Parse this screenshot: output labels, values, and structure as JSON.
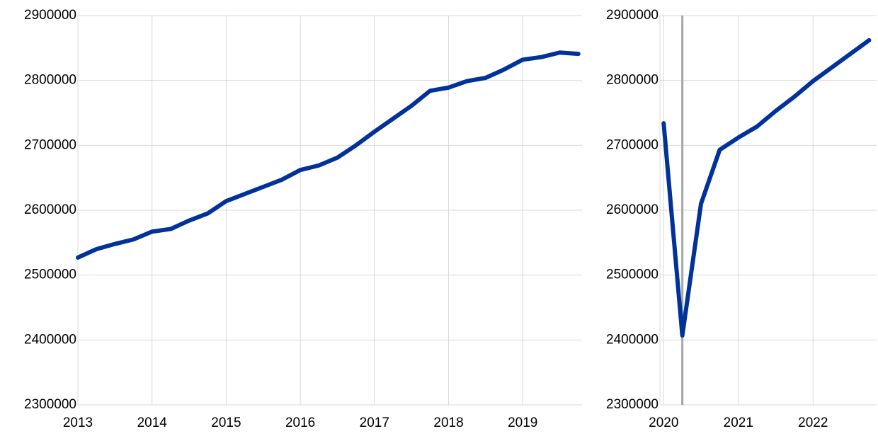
{
  "chart_data": [
    {
      "type": "line",
      "x": [
        2013,
        2013.25,
        2013.5,
        2013.75,
        2014,
        2014.25,
        2014.5,
        2014.75,
        2015,
        2015.25,
        2015.5,
        2015.75,
        2016,
        2016.25,
        2016.5,
        2016.75,
        2017,
        2017.25,
        2017.5,
        2017.75,
        2018,
        2018.25,
        2018.5,
        2018.75,
        2019,
        2019.25,
        2019.5,
        2019.75
      ],
      "series": [
        {
          "color": "#003299",
          "values": [
            2527000,
            2540000,
            2548000,
            2555000,
            2567000,
            2571000,
            2584000,
            2595000,
            2614000,
            2625000,
            2636000,
            2647000,
            2662000,
            2669000,
            2681000,
            2700000,
            2721000,
            2741000,
            2761000,
            2784000,
            2789000,
            2799000,
            2804000,
            2817000,
            2832000,
            2836000,
            2843000,
            2841000
          ]
        }
      ],
      "xlim": [
        2013,
        2019.8
      ],
      "xticks": [
        2013,
        2014,
        2015,
        2016,
        2017,
        2018,
        2019
      ],
      "ylim": [
        2300000,
        2900000
      ],
      "yticks": [
        2300000,
        2400000,
        2500000,
        2600000,
        2700000,
        2800000,
        2900000
      ],
      "grid": true
    },
    {
      "type": "line",
      "x": [
        2020,
        2020.25,
        2020.5,
        2020.75,
        2021,
        2021.25,
        2021.5,
        2021.75,
        2022,
        2022.25,
        2022.5,
        2022.75
      ],
      "series": [
        {
          "color": "#003299",
          "values": [
            2734000,
            2407000,
            2610000,
            2693000,
            2712000,
            2729000,
            2753000,
            2775000,
            2799000,
            2820000,
            2841000,
            2862000
          ]
        }
      ],
      "xlim": [
        2019.95,
        2022.85
      ],
      "xticks": [
        2020,
        2021,
        2022
      ],
      "ylim": [
        2300000,
        2900000
      ],
      "yticks": [
        2300000,
        2400000,
        2500000,
        2600000,
        2700000,
        2800000,
        2900000
      ],
      "grid": true,
      "marker_x": 2020.25,
      "marker_color": "#a6a6a6"
    }
  ]
}
